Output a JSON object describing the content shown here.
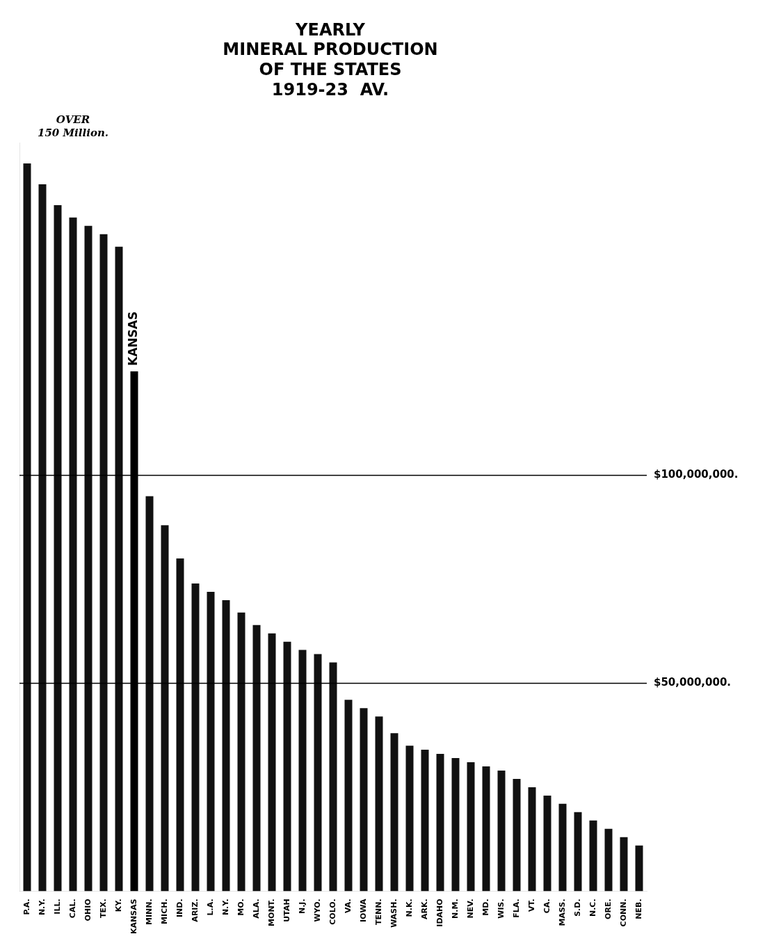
{
  "chart_data": {
    "type": "bar",
    "title": [
      "YEARLY",
      "MINERAL PRODUCTION",
      "OF THE STATES",
      "1919-23  AV."
    ],
    "categories": [
      "P.A.",
      "N.Y.",
      "ILL.",
      "CAL.",
      "OHIO",
      "TEX.",
      "KY.",
      "KANSAS",
      "MINN.",
      "MICH.",
      "IND.",
      "ARIZ.",
      "L.A.",
      "N.Y.",
      "MO.",
      "ALA.",
      "MONT.",
      "UTAH",
      "N.J.",
      "WYO.",
      "COLO.",
      "VA.",
      "IOWA",
      "TENN.",
      "WASH.",
      "N.K.",
      "ARK.",
      "IDAHO",
      "N.M.",
      "NEV.",
      "MD.",
      "WIS.",
      "FLA.",
      "VT.",
      "CA.",
      "MASS.",
      "S.D.",
      "N.C.",
      "ORE.",
      "CONN.",
      "NEB."
    ],
    "values": [
      175000000,
      170000000,
      165000000,
      162000000,
      160000000,
      158000000,
      155000000,
      125000000,
      95000000,
      88000000,
      80000000,
      74000000,
      72000000,
      70000000,
      67000000,
      64000000,
      62000000,
      60000000,
      58000000,
      57000000,
      55000000,
      46000000,
      44000000,
      42000000,
      38000000,
      35000000,
      34000000,
      33000000,
      32000000,
      31000000,
      30000000,
      29000000,
      27000000,
      25000000,
      23000000,
      21000000,
      19000000,
      17000000,
      15000000,
      13000000,
      11000000
    ],
    "colors": [
      "#111111",
      "#111111",
      "#111111",
      "#111111",
      "#111111",
      "#111111",
      "#111111",
      "#000000",
      "#111111",
      "#111111",
      "#111111",
      "#111111",
      "#111111",
      "#111111",
      "#111111",
      "#111111",
      "#111111",
      "#111111",
      "#111111",
      "#111111",
      "#111111",
      "#111111",
      "#111111",
      "#111111",
      "#111111",
      "#111111",
      "#111111",
      "#111111",
      "#111111",
      "#111111",
      "#111111",
      "#111111",
      "#111111",
      "#111111",
      "#111111",
      "#111111",
      "#111111",
      "#111111",
      "#111111",
      "#111111",
      "#111111"
    ],
    "ylim": [
      0,
      180000000
    ],
    "tick_labels": "x",
    "grid": false,
    "reference_lines": [
      {
        "value": 100000000,
        "label": "$100,000,000."
      },
      {
        "value": 50000000,
        "label": "$50,000,000."
      }
    ],
    "annotations": [
      {
        "text": [
          "OVER",
          "150 Million."
        ],
        "x": "CAL."
      },
      {
        "text": "KANSAS",
        "x": "KANSAS"
      }
    ]
  }
}
